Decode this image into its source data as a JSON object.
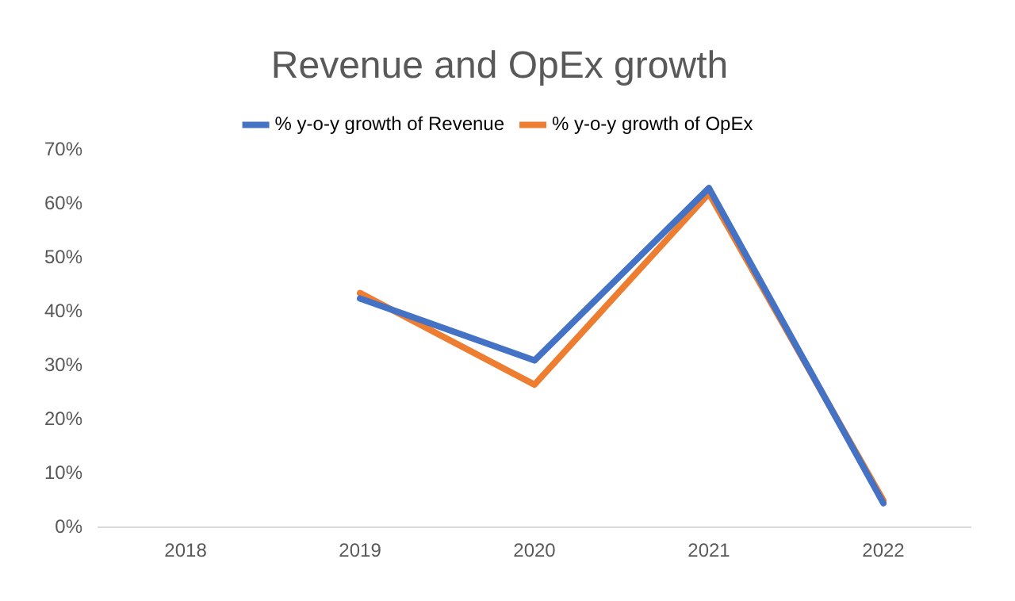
{
  "chart_data": {
    "type": "line",
    "title": "Revenue and OpEx growth",
    "categories": [
      "2018",
      "2019",
      "2020",
      "2021",
      "2022"
    ],
    "series": [
      {
        "name": "% y-o-y growth of Revenue",
        "color": "#4472c4",
        "values": [
          null,
          42.5,
          31,
          63,
          4.5
        ]
      },
      {
        "name": "% y-o-y growth of OpEx",
        "color": "#ed7d31",
        "values": [
          null,
          43.5,
          26.5,
          62,
          5
        ]
      }
    ],
    "ylim": [
      0,
      70
    ],
    "yticks": [
      {
        "value": 0,
        "label": "0%"
      },
      {
        "value": 10,
        "label": "10%"
      },
      {
        "value": 20,
        "label": "20%"
      },
      {
        "value": 30,
        "label": "30%"
      },
      {
        "value": 40,
        "label": "40%"
      },
      {
        "value": 50,
        "label": "50%"
      },
      {
        "value": 60,
        "label": "60%"
      },
      {
        "value": 70,
        "label": "70%"
      }
    ],
    "grid": false,
    "legend": "top",
    "marker": "none",
    "line_style": "solid"
  }
}
